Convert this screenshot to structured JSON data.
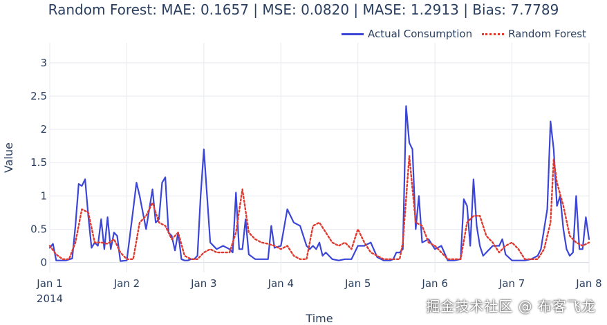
{
  "chart_data": {
    "type": "line",
    "title": "Random Forest: MAE: 0.1657 | MSE: 0.0820 | MASE: 1.2913 | Bias: 7.7789",
    "xlabel": "Time",
    "ylabel": "Value",
    "ylim": [
      -0.15,
      3.3
    ],
    "yticks": [
      0,
      0.5,
      1,
      1.5,
      2,
      2.5,
      3
    ],
    "ytick_labels": [
      "0",
      "0.5",
      "1",
      "1.5",
      "2",
      "2.5",
      "3"
    ],
    "xlim": [
      "2014-01-01",
      "2014-01-08"
    ],
    "xticks": [
      "2014-01-01",
      "2014-01-02",
      "2014-01-03",
      "2014-01-04",
      "2014-01-05",
      "2014-01-06",
      "2014-01-07",
      "2014-01-08"
    ],
    "xtick_labels": [
      "Jan 1",
      "Jan 2",
      "Jan 3",
      "Jan 4",
      "Jan 5",
      "Jan 6",
      "Jan 7",
      "Jan 8"
    ],
    "xtick_sublabel": "2014",
    "grid": true,
    "legend_position": "top-right",
    "series": [
      {
        "name": "Actual Consumption",
        "color": "#3b45d6",
        "style": "solid",
        "x": [
          "2014-01-01 00:00",
          "2014-01-01 01:00",
          "2014-01-01 02:00",
          "2014-01-01 03:00",
          "2014-01-01 05:00",
          "2014-01-01 07:00",
          "2014-01-01 08:00",
          "2014-01-01 09:00",
          "2014-01-01 10:00",
          "2014-01-01 11:00",
          "2014-01-01 12:00",
          "2014-01-01 13:00",
          "2014-01-01 14:00",
          "2014-01-01 15:00",
          "2014-01-01 16:00",
          "2014-01-01 17:00",
          "2014-01-01 18:00",
          "2014-01-01 19:00",
          "2014-01-01 20:00",
          "2014-01-01 21:00",
          "2014-01-01 22:00",
          "2014-01-02 00:00",
          "2014-01-02 02:00",
          "2014-01-02 03:00",
          "2014-01-02 04:00",
          "2014-01-02 06:00",
          "2014-01-02 08:00",
          "2014-01-02 09:00",
          "2014-01-02 10:00",
          "2014-01-02 11:00",
          "2014-01-02 12:00",
          "2014-01-02 13:00",
          "2014-01-02 14:00",
          "2014-01-02 15:00",
          "2014-01-02 16:00",
          "2014-01-02 17:00",
          "2014-01-02 18:00",
          "2014-01-02 19:00",
          "2014-01-02 20:00",
          "2014-01-02 21:00",
          "2014-01-02 22:00",
          "2014-01-02 23:00",
          "2014-01-03 00:00",
          "2014-01-03 02:00",
          "2014-01-03 04:00",
          "2014-01-03 06:00",
          "2014-01-03 08:00",
          "2014-01-03 09:00",
          "2014-01-03 10:00",
          "2014-01-03 11:00",
          "2014-01-03 12:00",
          "2014-01-03 13:00",
          "2014-01-03 14:00",
          "2014-01-03 16:00",
          "2014-01-03 18:00",
          "2014-01-03 20:00",
          "2014-01-03 21:00",
          "2014-01-03 22:00",
          "2014-01-04 00:00",
          "2014-01-04 02:00",
          "2014-01-04 04:00",
          "2014-01-04 06:00",
          "2014-01-04 08:00",
          "2014-01-04 09:00",
          "2014-01-04 10:00",
          "2014-01-04 11:00",
          "2014-01-04 12:00",
          "2014-01-04 13:00",
          "2014-01-04 14:00",
          "2014-01-04 16:00",
          "2014-01-04 18:00",
          "2014-01-04 20:00",
          "2014-01-04 22:00",
          "2014-01-05 00:00",
          "2014-01-05 02:00",
          "2014-01-05 04:00",
          "2014-01-05 06:00",
          "2014-01-05 08:00",
          "2014-01-05 09:00",
          "2014-01-05 10:00",
          "2014-01-05 11:00",
          "2014-01-05 12:00",
          "2014-01-05 13:00",
          "2014-01-05 14:00",
          "2014-01-05 15:00",
          "2014-01-05 16:00",
          "2014-01-05 17:00",
          "2014-01-05 18:00",
          "2014-01-05 19:00",
          "2014-01-05 20:00",
          "2014-01-05 22:00",
          "2014-01-06 00:00",
          "2014-01-06 02:00",
          "2014-01-06 04:00",
          "2014-01-06 06:00",
          "2014-01-06 08:00",
          "2014-01-06 09:00",
          "2014-01-06 10:00",
          "2014-01-06 11:00",
          "2014-01-06 12:00",
          "2014-01-06 13:00",
          "2014-01-06 14:00",
          "2014-01-06 15:00",
          "2014-01-06 16:00",
          "2014-01-06 18:00",
          "2014-01-06 20:00",
          "2014-01-06 21:00",
          "2014-01-06 22:00",
          "2014-01-07 00:00",
          "2014-01-07 02:00",
          "2014-01-07 04:00",
          "2014-01-07 06:00",
          "2014-01-07 08:00",
          "2014-01-07 09:00",
          "2014-01-07 10:00",
          "2014-01-07 11:00",
          "2014-01-07 12:00",
          "2014-01-07 13:00",
          "2014-01-07 14:00",
          "2014-01-07 15:00",
          "2014-01-07 16:00",
          "2014-01-07 17:00",
          "2014-01-07 18:00",
          "2014-01-07 19:00",
          "2014-01-07 20:00",
          "2014-01-07 21:00",
          "2014-01-07 22:00",
          "2014-01-07 23:00",
          "2014-01-08 00:00"
        ],
        "y": [
          0.22,
          0.28,
          0.03,
          0.03,
          0.03,
          0.06,
          0.55,
          1.18,
          1.15,
          1.25,
          0.7,
          0.22,
          0.3,
          0.25,
          0.65,
          0.2,
          0.68,
          0.2,
          0.45,
          0.4,
          0.02,
          0.03,
          0.8,
          1.2,
          1.0,
          0.5,
          1.1,
          0.6,
          0.65,
          1.2,
          1.28,
          0.45,
          0.4,
          0.18,
          0.45,
          0.05,
          0.03,
          0.03,
          0.05,
          0.05,
          0.1,
          1.0,
          1.7,
          0.3,
          0.2,
          0.25,
          0.2,
          0.15,
          1.05,
          0.2,
          0.2,
          0.65,
          0.12,
          0.05,
          0.05,
          0.05,
          0.55,
          0.22,
          0.25,
          0.8,
          0.6,
          0.55,
          0.25,
          0.2,
          0.25,
          0.2,
          0.3,
          0.1,
          0.15,
          0.05,
          0.03,
          0.05,
          0.05,
          0.25,
          0.25,
          0.3,
          0.08,
          0.03,
          0.03,
          0.03,
          0.05,
          0.15,
          0.15,
          0.2,
          2.35,
          1.8,
          1.7,
          0.5,
          1.0,
          0.3,
          0.35,
          0.2,
          0.25,
          0.03,
          0.03,
          0.05,
          0.95,
          0.85,
          0.25,
          1.25,
          0.55,
          0.25,
          0.1,
          0.15,
          0.25,
          0.25,
          0.35,
          0.12,
          0.03,
          0.03,
          0.03,
          0.05,
          0.1,
          0.2,
          0.5,
          0.8,
          2.12,
          1.7,
          0.85,
          1.0,
          0.5,
          0.2,
          0.1,
          0.15,
          1.0,
          0.2,
          0.2,
          0.68,
          0.35
        ]
      },
      {
        "name": "Random Forest",
        "color": "#e03a2f",
        "style": "dotted",
        "x": [
          "2014-01-01 00:00",
          "2014-01-01 02:00",
          "2014-01-01 04:00",
          "2014-01-01 06:00",
          "2014-01-01 08:00",
          "2014-01-01 10:00",
          "2014-01-01 12:00",
          "2014-01-01 14:00",
          "2014-01-01 16:00",
          "2014-01-01 18:00",
          "2014-01-01 20:00",
          "2014-01-01 22:00",
          "2014-01-02 00:00",
          "2014-01-02 02:00",
          "2014-01-02 04:00",
          "2014-01-02 06:00",
          "2014-01-02 08:00",
          "2014-01-02 10:00",
          "2014-01-02 12:00",
          "2014-01-02 14:00",
          "2014-01-02 16:00",
          "2014-01-02 18:00",
          "2014-01-02 20:00",
          "2014-01-02 22:00",
          "2014-01-03 00:00",
          "2014-01-03 02:00",
          "2014-01-03 04:00",
          "2014-01-03 06:00",
          "2014-01-03 08:00",
          "2014-01-03 10:00",
          "2014-01-03 12:00",
          "2014-01-03 14:00",
          "2014-01-03 16:00",
          "2014-01-03 18:00",
          "2014-01-03 20:00",
          "2014-01-03 22:00",
          "2014-01-04 00:00",
          "2014-01-04 02:00",
          "2014-01-04 04:00",
          "2014-01-04 06:00",
          "2014-01-04 08:00",
          "2014-01-04 10:00",
          "2014-01-04 12:00",
          "2014-01-04 14:00",
          "2014-01-04 16:00",
          "2014-01-04 18:00",
          "2014-01-04 20:00",
          "2014-01-04 22:00",
          "2014-01-05 00:00",
          "2014-01-05 02:00",
          "2014-01-05 04:00",
          "2014-01-05 06:00",
          "2014-01-05 08:00",
          "2014-01-05 10:00",
          "2014-01-05 12:00",
          "2014-01-05 13:00",
          "2014-01-05 14:00",
          "2014-01-05 16:00",
          "2014-01-05 18:00",
          "2014-01-05 20:00",
          "2014-01-05 22:00",
          "2014-01-06 00:00",
          "2014-01-06 02:00",
          "2014-01-06 04:00",
          "2014-01-06 06:00",
          "2014-01-06 08:00",
          "2014-01-06 10:00",
          "2014-01-06 12:00",
          "2014-01-06 14:00",
          "2014-01-06 16:00",
          "2014-01-06 18:00",
          "2014-01-06 20:00",
          "2014-01-06 22:00",
          "2014-01-07 00:00",
          "2014-01-07 02:00",
          "2014-01-07 04:00",
          "2014-01-07 06:00",
          "2014-01-07 08:00",
          "2014-01-07 10:00",
          "2014-01-07 12:00",
          "2014-01-07 13:00",
          "2014-01-07 14:00",
          "2014-01-07 16:00",
          "2014-01-07 18:00",
          "2014-01-07 20:00",
          "2014-01-07 22:00",
          "2014-01-08 00:00"
        ],
        "y": [
          0.25,
          0.12,
          0.05,
          0.05,
          0.3,
          0.8,
          0.75,
          0.3,
          0.3,
          0.28,
          0.35,
          0.15,
          0.05,
          0.05,
          0.6,
          0.7,
          0.9,
          0.6,
          0.55,
          0.35,
          0.45,
          0.1,
          0.05,
          0.05,
          0.15,
          0.2,
          0.15,
          0.15,
          0.15,
          0.45,
          1.1,
          0.45,
          0.35,
          0.3,
          0.28,
          0.25,
          0.2,
          0.25,
          0.1,
          0.05,
          0.05,
          0.55,
          0.6,
          0.45,
          0.3,
          0.25,
          0.3,
          0.2,
          0.5,
          0.3,
          0.15,
          0.1,
          0.05,
          0.05,
          0.05,
          0.05,
          0.3,
          1.6,
          0.6,
          0.55,
          0.3,
          0.25,
          0.15,
          0.05,
          0.05,
          0.05,
          0.6,
          0.7,
          0.7,
          0.4,
          0.3,
          0.15,
          0.25,
          0.3,
          0.2,
          0.05,
          0.05,
          0.05,
          0.2,
          0.6,
          1.55,
          1.2,
          0.85,
          0.4,
          0.3,
          0.25,
          0.3
        ]
      }
    ]
  },
  "watermark": "掘金技术社区 @ 布客飞龙"
}
